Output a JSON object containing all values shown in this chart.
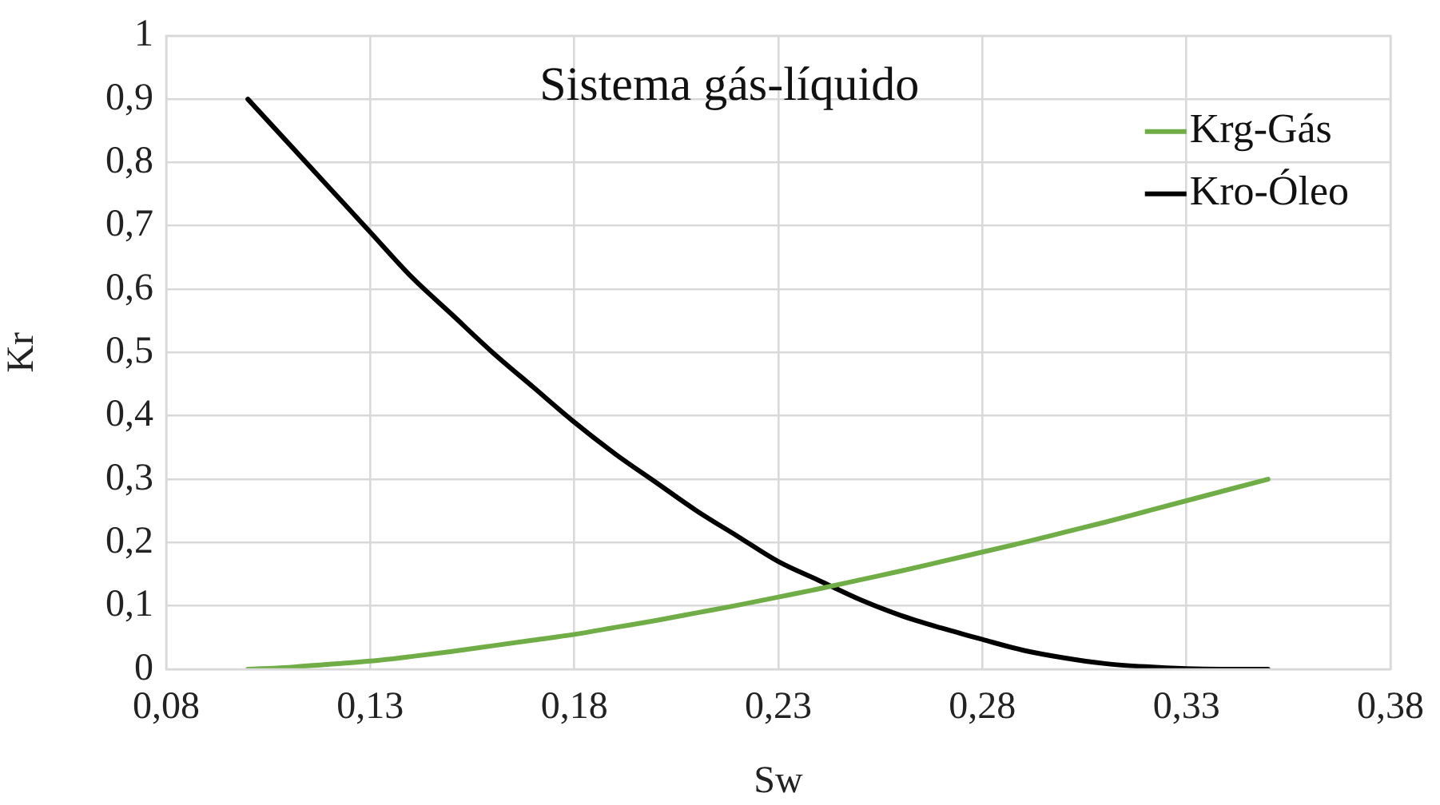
{
  "chart_data": {
    "type": "line",
    "title": "Sistema gás-líquido",
    "xlabel": "Sw",
    "ylabel": "Kr",
    "x": [
      0.1,
      0.11,
      0.12,
      0.13,
      0.14,
      0.15,
      0.16,
      0.17,
      0.18,
      0.19,
      0.2,
      0.21,
      0.22,
      0.23,
      0.24,
      0.25,
      0.26,
      0.27,
      0.28,
      0.29,
      0.3,
      0.31,
      0.32,
      0.33,
      0.34,
      0.35
    ],
    "series": [
      {
        "name": "Krg-Gás",
        "color": "#70ad47",
        "values": [
          0,
          0.003,
          0.008,
          0.013,
          0.02,
          0.028,
          0.037,
          0.046,
          0.055,
          0.066,
          0.077,
          0.089,
          0.101,
          0.114,
          0.127,
          0.141,
          0.155,
          0.17,
          0.185,
          0.2,
          0.216,
          0.232,
          0.249,
          0.266,
          0.283,
          0.3
        ]
      },
      {
        "name": "Kro-Óleo",
        "color": "#000000",
        "values": [
          0.9,
          0.83,
          0.76,
          0.69,
          0.62,
          0.56,
          0.5,
          0.445,
          0.39,
          0.34,
          0.295,
          0.25,
          0.21,
          0.17,
          0.14,
          0.11,
          0.085,
          0.065,
          0.047,
          0.03,
          0.018,
          0.009,
          0.004,
          0.001,
          0,
          0
        ]
      }
    ],
    "xlim": [
      0.08,
      0.38
    ],
    "xticks": [
      {
        "value": 0.08,
        "label": "0,08"
      },
      {
        "value": 0.13,
        "label": "0,13"
      },
      {
        "value": 0.18,
        "label": "0,18"
      },
      {
        "value": 0.23,
        "label": "0,23"
      },
      {
        "value": 0.28,
        "label": "0,28"
      },
      {
        "value": 0.33,
        "label": "0,33"
      },
      {
        "value": 0.38,
        "label": "0,38"
      }
    ],
    "ylim": [
      0,
      1
    ],
    "yticks": [
      0,
      {
        "value": 0.1,
        "label": "0,1"
      },
      {
        "value": 0.2,
        "label": "0,2"
      },
      {
        "value": 0.3,
        "label": "0,3"
      },
      {
        "value": 0.4,
        "label": "0,4"
      },
      {
        "value": 0.5,
        "label": "0,5"
      },
      {
        "value": 0.6,
        "label": "0,6"
      },
      {
        "value": 0.7,
        "label": "0,7"
      },
      {
        "value": 0.8,
        "label": "0,8"
      },
      {
        "value": 0.9,
        "label": "0,9"
      },
      1
    ],
    "grid": true,
    "legend": "top right",
    "marker": "none",
    "line_style": "solid"
  }
}
